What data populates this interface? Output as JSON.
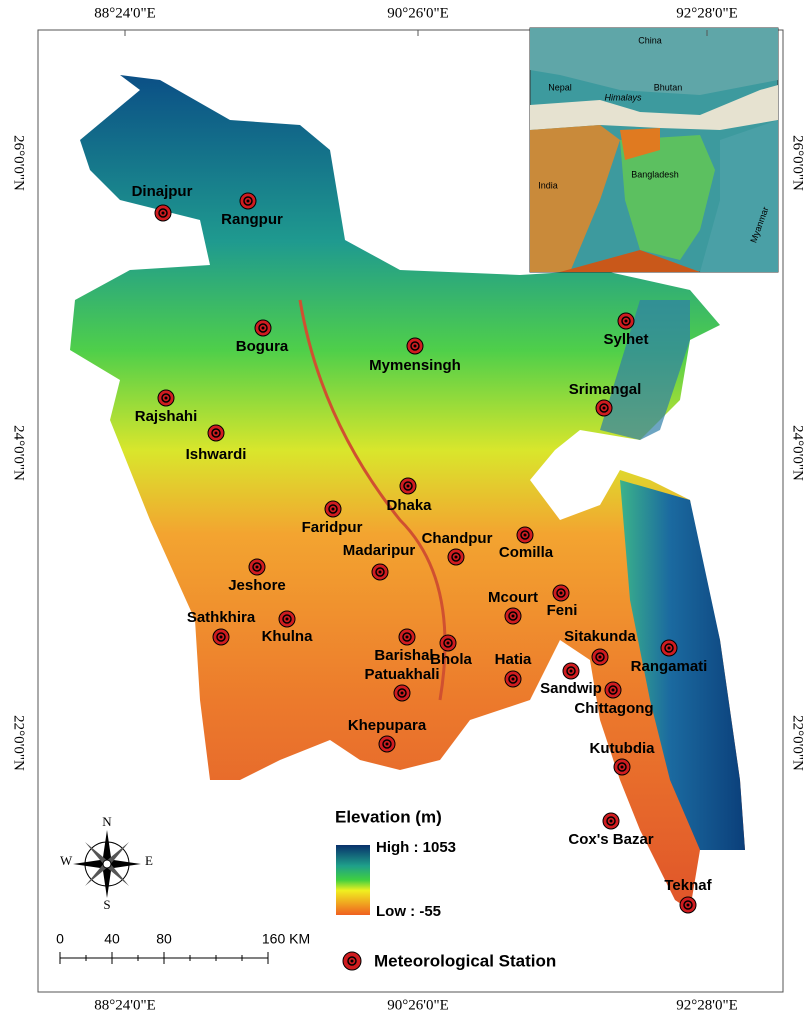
{
  "map": {
    "longitudes": [
      "88°24'0\"E",
      "90°26'0\"E",
      "92°28'0\"E"
    ],
    "latitudes": [
      "26°0'0\"N",
      "24°0'0\"N",
      "22°0'0\"N"
    ],
    "stations": [
      "Dinajpur",
      "Rangpur",
      "Bogura",
      "Mymensingh",
      "Sylhet",
      "Srimangal",
      "Rajshahi",
      "Ishwardi",
      "Dhaka",
      "Faridpur",
      "Chandpur",
      "Comilla",
      "Madaripur",
      "Jeshore",
      "Feni",
      "Mcourt",
      "Khulna",
      "Sathkhira",
      "Barishal",
      "Bhola",
      "Sitakunda",
      "Rangamati",
      "Hatia",
      "Sandwip",
      "Patuakhali",
      "Chittagong",
      "Khepupara",
      "Kutubdia",
      "Cox's Bazar",
      "Teknaf"
    ],
    "inset": {
      "labels": [
        "China",
        "Nepal",
        "Bhutan",
        "Himalays",
        "India",
        "Bangladesh",
        "Myanmar"
      ]
    },
    "legend": {
      "title": "Elevation (m)",
      "high": "High : 1053",
      "low": "Low : -55",
      "station": "Meteorological Station"
    },
    "compass": {
      "n": "N",
      "s": "S",
      "e": "E",
      "w": "W"
    },
    "scale_bar": [
      "0",
      "40",
      "80",
      "160 KM"
    ]
  }
}
